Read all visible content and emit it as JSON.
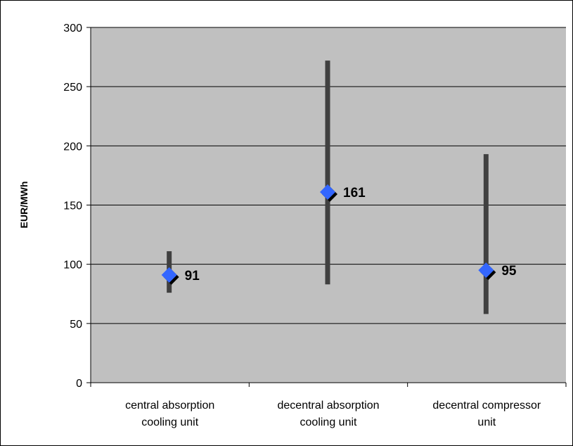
{
  "chart_data": {
    "type": "scatter",
    "categories": [
      "central absorption\ncooling unit",
      "decentral absorption\ncooling unit",
      "decentral compressor\nunit"
    ],
    "values": [
      91,
      161,
      95
    ],
    "ranges": [
      [
        76,
        111
      ],
      [
        83,
        272
      ],
      [
        58,
        193
      ]
    ],
    "data_labels": [
      "91",
      "161",
      "95"
    ],
    "title": "",
    "xlabel": "",
    "ylabel": "EUR/MWh",
    "ylim": [
      0,
      300
    ],
    "yticks": [
      0,
      50,
      100,
      150,
      200,
      250,
      300
    ],
    "ytick_labels": [
      "0",
      "50",
      "100",
      "150",
      "200",
      "250",
      "300"
    ],
    "grid": true,
    "legend": "none",
    "colors": {
      "plot_background": "#c0c0c0",
      "range_bar": "#404040",
      "marker": "#3366ff",
      "marker_shadow": "#000000",
      "gridline": "#000000"
    }
  }
}
